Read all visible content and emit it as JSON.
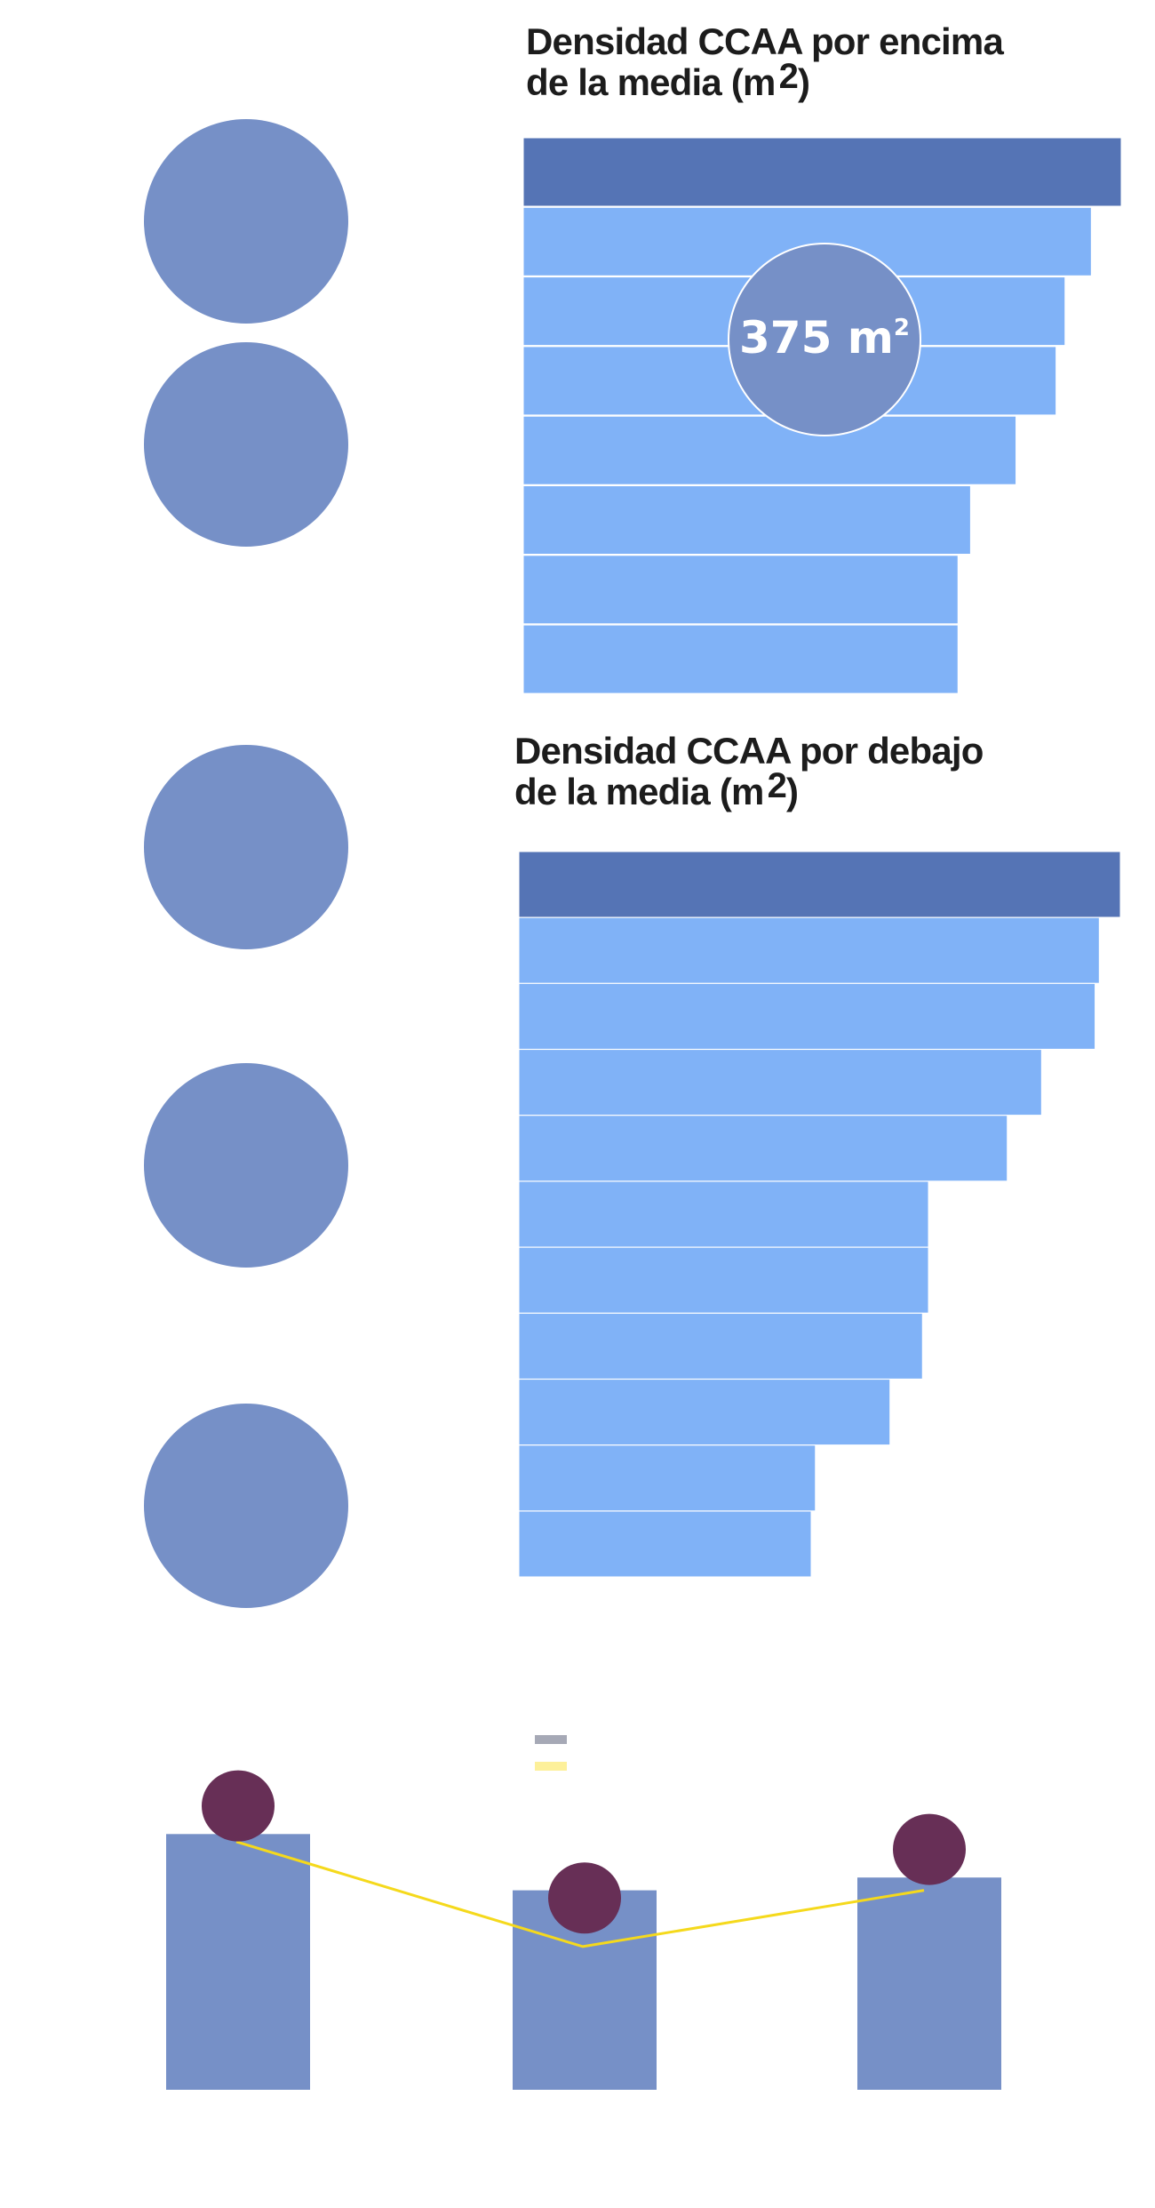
{
  "colors": {
    "circle": "#7690c7",
    "bar_top": "#5574b5",
    "bar": "#80b2f7",
    "bar_divider": "#ffffff",
    "column": "#7690c7",
    "dot": "#672f56",
    "line": "#f5d91c",
    "legend_gray": "#a6a9b6",
    "legend_yellow": "#fdf09a",
    "title": "#1c1c1c"
  },
  "charts": {
    "above": {
      "title_line1": "Densidad CCAA por encima",
      "title_line2_main": "de la media (m",
      "title_line2_sup": "2",
      "title_line2_close": ")",
      "badge_value": "375",
      "badge_unit": "m",
      "badge_sup": "2"
    },
    "below": {
      "title_line1": "Densidad CCAA por debajo",
      "title_line2_main": "de la media (m",
      "title_line2_sup": "2",
      "title_line2_close": ")"
    }
  },
  "chart_data": [
    {
      "type": "bar",
      "orientation": "horizontal",
      "title": "Densidad CCAA por encima de la media (m2)",
      "annotation": "375 m²",
      "values": [
        100,
        95,
        90.6,
        89.1,
        82.4,
        74.8,
        72.7,
        72.7
      ],
      "highlight_index": 0
    },
    {
      "type": "bar",
      "orientation": "horizontal",
      "title": "Densidad CCAA por debajo de la media (m2)",
      "values": [
        100,
        96.5,
        95.8,
        86.9,
        81.2,
        68.1,
        68.1,
        67.1,
        61.7,
        49.3,
        48.6
      ],
      "highlight_index": 0
    },
    {
      "type": "bar",
      "categories": [
        "",
        "",
        ""
      ],
      "series": [
        {
          "type": "bar",
          "values": [
            100,
            78,
            83
          ]
        },
        {
          "type": "line",
          "values": [
            97,
            56,
            78
          ]
        },
        {
          "type": "scatter",
          "values": [
            111,
            75,
            94
          ]
        }
      ],
      "ylim": [
        0,
        130
      ]
    }
  ]
}
